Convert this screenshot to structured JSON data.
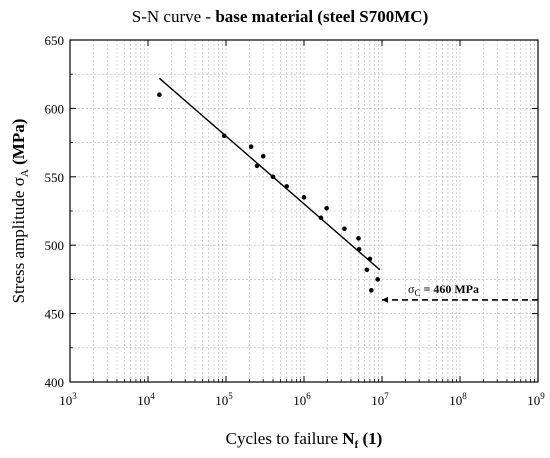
{
  "chart_data": {
    "type": "scatter",
    "title": {
      "normal": "S-N curve - ",
      "bold": "base material (steel S700MC)"
    },
    "xlabel": {
      "text": "Cycles to failure ",
      "symbol": "N",
      "sub": "f",
      "unit": " (1)"
    },
    "ylabel": {
      "text": "Stress amplitude ",
      "symbol": "σ",
      "sub": "A",
      "unit": " (MPa)"
    },
    "x_scale": "log",
    "xlim": [
      1000,
      1000000000
    ],
    "ylim": [
      400,
      650
    ],
    "x_ticks": [
      {
        "value": 1000,
        "base": "10",
        "exp": "3"
      },
      {
        "value": 10000,
        "base": "10",
        "exp": "4"
      },
      {
        "value": 100000,
        "base": "10",
        "exp": "5"
      },
      {
        "value": 1000000,
        "base": "10",
        "exp": "6"
      },
      {
        "value": 10000000,
        "base": "10",
        "exp": "7"
      },
      {
        "value": 100000000,
        "base": "10",
        "exp": "8"
      },
      {
        "value": 1000000000,
        "base": "10",
        "exp": "9"
      }
    ],
    "y_ticks": [
      "400",
      "450",
      "500",
      "550",
      "600",
      "650"
    ],
    "grid": true,
    "points": [
      {
        "x": 14000,
        "y": 610
      },
      {
        "x": 95000,
        "y": 580
      },
      {
        "x": 210000,
        "y": 572
      },
      {
        "x": 250000,
        "y": 558
      },
      {
        "x": 300000,
        "y": 565
      },
      {
        "x": 400000,
        "y": 550
      },
      {
        "x": 600000,
        "y": 543
      },
      {
        "x": 1000000,
        "y": 535
      },
      {
        "x": 1650000,
        "y": 520
      },
      {
        "x": 1950000,
        "y": 527
      },
      {
        "x": 3300000,
        "y": 512
      },
      {
        "x": 5000000,
        "y": 505
      },
      {
        "x": 5100000,
        "y": 497
      },
      {
        "x": 6400000,
        "y": 482
      },
      {
        "x": 7000000,
        "y": 490
      },
      {
        "x": 7300000,
        "y": 467
      },
      {
        "x": 8800000,
        "y": 475
      }
    ],
    "fit_line": {
      "x": [
        14000,
        9400000
      ],
      "y": [
        622,
        482
      ]
    },
    "fatigue_limit": {
      "value": 460,
      "x_start": 10000000,
      "x_end": 1000000000,
      "label_symbol": "σ",
      "label_sub": "C",
      "label_text": " = 460 MPa"
    }
  }
}
